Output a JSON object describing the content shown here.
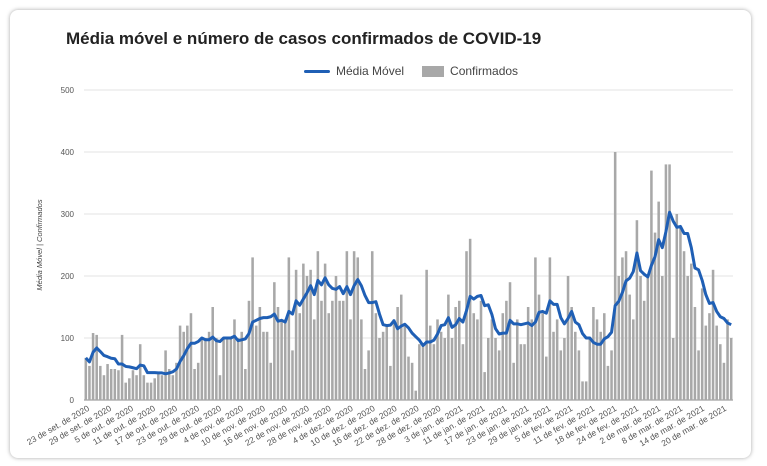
{
  "chart_data": {
    "type": "bar",
    "title": "Média móvel e número de casos confirmados de COVID-19",
    "ylabel": "Média Móvel | Confirmados",
    "xlabel": "",
    "ylim": [
      0,
      500
    ],
    "yticks": [
      0,
      100,
      200,
      300,
      400,
      500
    ],
    "grid": true,
    "legend_position": "top",
    "series": [
      {
        "name": "Média Móvel",
        "kind": "line",
        "color": "#1f5fb5"
      },
      {
        "name": "Confirmados",
        "kind": "bar",
        "color": "#a8a8a8"
      }
    ],
    "start_date": "2020-09-23",
    "x_tick_labels": [
      "23 de set. de 2020",
      "29 de set. de 2020",
      "5 de out. de 2020",
      "11 de out. de 2020",
      "17 de out. de 2020",
      "23 de out. de 2020",
      "29 de out. de 2020",
      "4 de nov. de 2020",
      "10 de nov. de 2020",
      "16 de nov. de 2020",
      "22 de nov. de 2020",
      "28 de nov. de 2020",
      "4 de dez. de 2020",
      "10 de dez. de 2020",
      "16 de dez. de 2020",
      "22 de dez. de 2020",
      "28 de dez. de 2020",
      "3 de jan. de 2021",
      "11 de jan. de 2021",
      "17 de jan. de 2021",
      "23 de jan. de 2021",
      "29 de jan. de 2021",
      "5 de fev. de 2021",
      "11 de fev. de 2021",
      "18 de fev. de 2021",
      "24 de fev. de 2021",
      "2 de mar. de 2021",
      "8 de mar. de 2021",
      "14 de mar. de 2021",
      "20 de mar. de 2021"
    ],
    "confirmados": [
      68,
      55,
      108,
      105,
      55,
      40,
      58,
      50,
      50,
      48,
      105,
      28,
      35,
      48,
      40,
      90,
      40,
      28,
      28,
      35,
      45,
      40,
      80,
      50,
      40,
      60,
      120,
      110,
      120,
      140,
      50,
      60,
      100,
      100,
      110,
      150,
      100,
      40,
      100,
      100,
      100,
      130,
      100,
      110,
      50,
      160,
      230,
      120,
      150,
      110,
      110,
      60,
      190,
      150,
      130,
      130,
      230,
      80,
      210,
      140,
      220,
      200,
      210,
      130,
      240,
      160,
      220,
      140,
      160,
      200,
      160,
      160,
      240,
      130,
      240,
      230,
      130,
      50,
      80,
      240,
      140,
      100,
      110,
      120,
      55,
      130,
      150,
      170,
      120,
      70,
      60,
      15,
      90,
      90,
      210,
      120,
      90,
      130,
      110,
      100,
      170,
      100,
      150,
      160,
      90,
      240,
      260,
      140,
      130,
      160,
      45,
      100,
      130,
      100,
      80,
      140,
      160,
      190,
      60,
      130,
      90,
      90,
      150,
      130,
      230,
      170,
      140,
      70,
      230,
      110,
      130,
      80,
      100,
      200,
      150,
      110,
      80,
      30,
      30,
      100,
      150,
      130,
      110,
      140,
      55,
      80,
      400,
      200,
      230,
      240,
      170,
      130,
      290,
      200,
      160,
      200,
      370,
      270,
      320,
      200,
      380,
      380,
      100,
      300,
      280,
      240,
      200,
      220,
      150,
      80,
      180,
      120,
      140,
      210,
      120,
      90,
      60,
      130,
      100
    ]
  }
}
